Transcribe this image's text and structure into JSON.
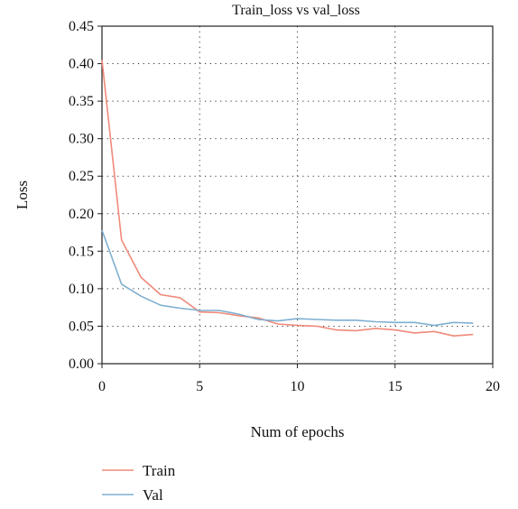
{
  "chart_data": {
    "type": "line",
    "title": "Train_loss vs val_loss",
    "xlabel": "Num of epochs",
    "ylabel": "Loss",
    "xlim": [
      0,
      20
    ],
    "ylim": [
      0,
      0.45
    ],
    "xticks": [
      "0",
      "5",
      "10",
      "15",
      "20"
    ],
    "yticks": [
      "0.00",
      "0.05",
      "0.10",
      "0.15",
      "0.20",
      "0.25",
      "0.30",
      "0.35",
      "0.40",
      "0.45"
    ],
    "grid": true,
    "legend_position": "bottom-left (below plot)",
    "x": [
      0,
      1,
      2,
      3,
      4,
      5,
      6,
      7,
      8,
      9,
      10,
      11,
      12,
      13,
      14,
      15,
      16,
      17,
      18,
      19
    ],
    "series": [
      {
        "name": "Train",
        "color": "#f08a7a",
        "values": [
          0.405,
          0.165,
          0.115,
          0.092,
          0.088,
          0.069,
          0.068,
          0.064,
          0.061,
          0.053,
          0.051,
          0.05,
          0.045,
          0.044,
          0.047,
          0.045,
          0.041,
          0.043,
          0.037,
          0.039
        ]
      },
      {
        "name": "Val",
        "color": "#7eafd0",
        "values": [
          0.178,
          0.106,
          0.09,
          0.078,
          0.074,
          0.071,
          0.071,
          0.066,
          0.059,
          0.057,
          0.06,
          0.059,
          0.058,
          0.058,
          0.056,
          0.055,
          0.055,
          0.051,
          0.055,
          0.054
        ]
      }
    ]
  }
}
